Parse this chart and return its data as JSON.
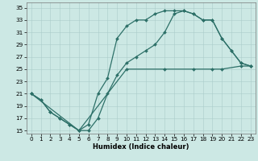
{
  "xlabel": "Humidex (Indice chaleur)",
  "bg_color": "#cce8e4",
  "grid_color": "#aaccca",
  "line_color": "#2d7068",
  "xlim_min": -0.5,
  "xlim_max": 23.5,
  "ylim_min": 14.5,
  "ylim_max": 35.8,
  "xticks": [
    0,
    1,
    2,
    3,
    4,
    5,
    6,
    7,
    8,
    9,
    10,
    11,
    12,
    13,
    14,
    15,
    16,
    17,
    18,
    19,
    20,
    21,
    22,
    23
  ],
  "yticks": [
    15,
    17,
    19,
    21,
    23,
    25,
    27,
    29,
    31,
    33,
    35
  ],
  "line1_x": [
    0,
    1,
    2,
    3,
    4,
    5,
    6,
    7,
    8,
    9,
    10,
    11,
    12,
    13,
    14,
    15,
    16,
    17,
    18,
    19,
    20,
    21,
    22,
    23
  ],
  "line1_y": [
    21,
    20,
    18,
    17,
    16,
    15,
    15,
    17,
    21,
    24,
    26,
    27,
    28,
    29,
    31,
    34,
    34.5,
    34,
    33,
    33,
    30,
    28,
    26,
    25.5
  ],
  "line2_x": [
    0,
    1,
    2,
    3,
    4,
    5,
    6,
    7,
    8,
    9,
    10,
    11,
    12,
    13,
    14,
    15,
    16,
    17,
    18,
    19,
    20,
    21,
    22,
    23
  ],
  "line2_y": [
    21,
    20,
    18,
    17,
    16,
    15,
    16,
    21,
    23.5,
    30,
    32,
    33,
    33,
    34,
    34.5,
    34.5,
    34.5,
    34,
    33,
    33,
    30,
    28,
    26,
    25.5
  ],
  "line3_x": [
    0,
    5,
    10,
    14,
    17,
    19,
    20,
    22,
    23
  ],
  "line3_y": [
    21,
    15,
    25,
    25,
    25,
    25,
    25,
    25.5,
    25.5
  ],
  "xlabel_fontsize": 6.0,
  "tick_fontsize": 5.2,
  "linewidth": 0.9,
  "markersize": 2.0
}
